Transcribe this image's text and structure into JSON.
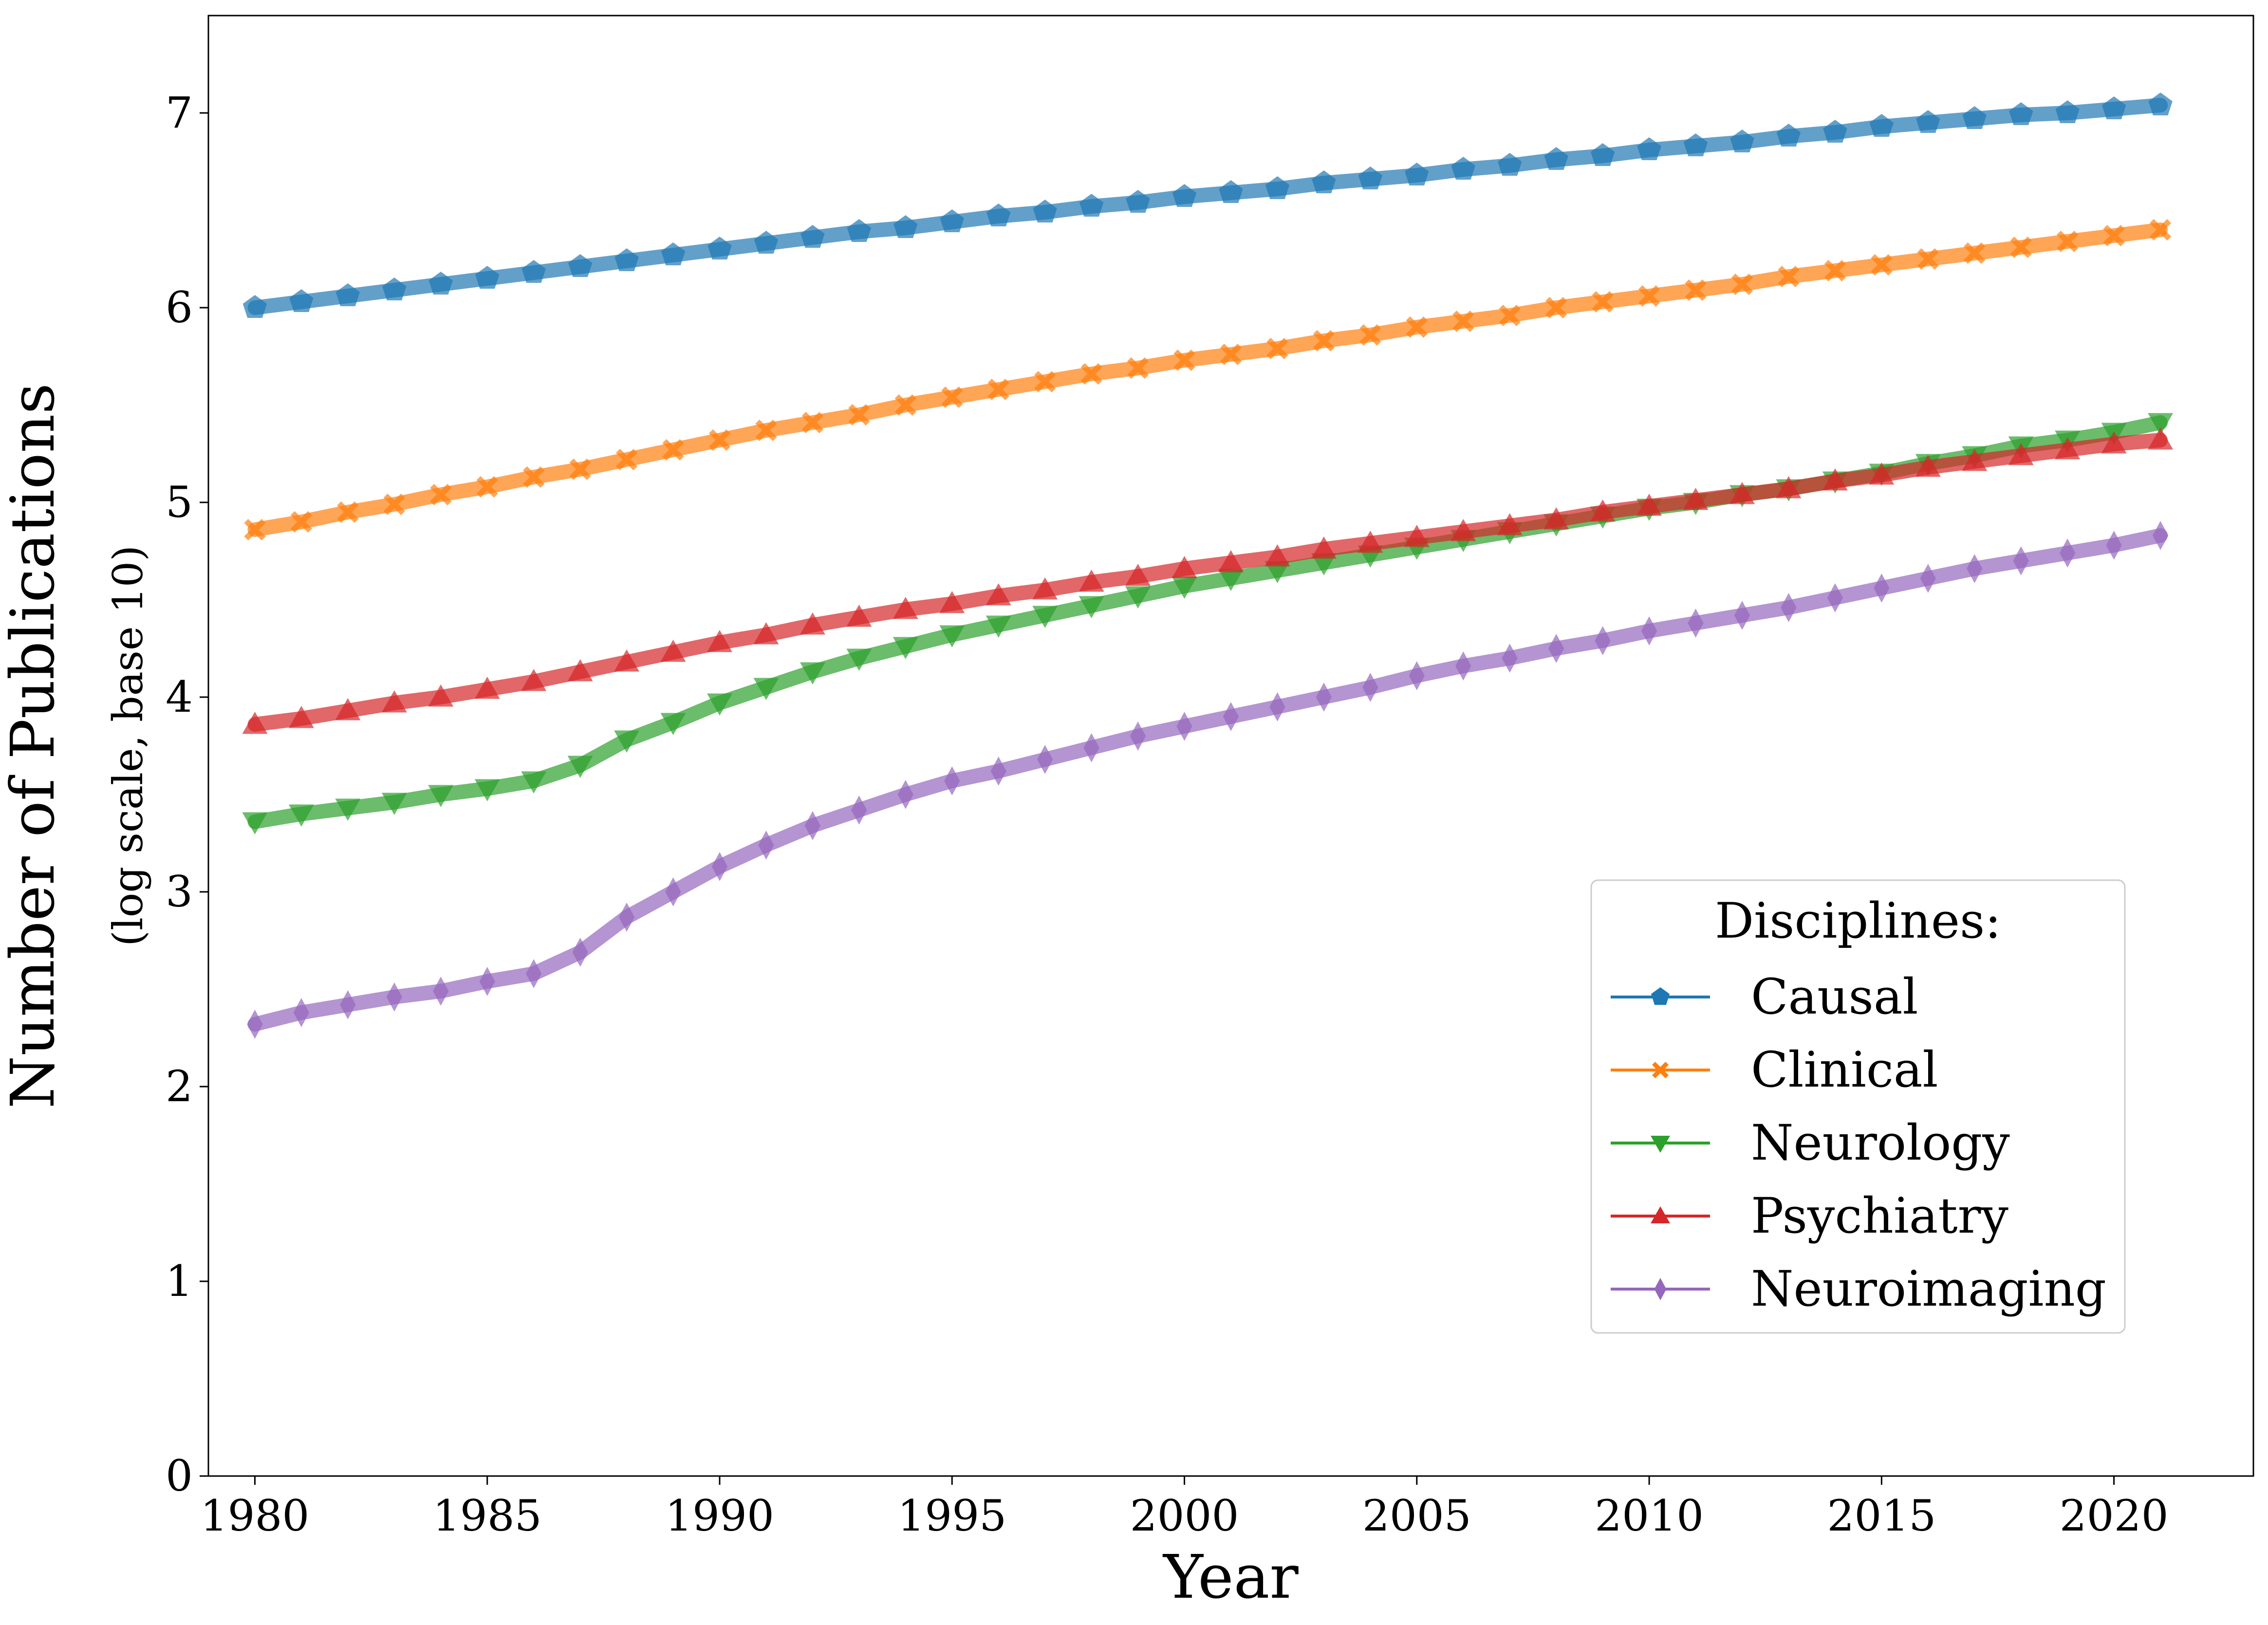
{
  "chart_data": {
    "type": "line",
    "x": [
      1980,
      1981,
      1982,
      1983,
      1984,
      1985,
      1986,
      1987,
      1988,
      1989,
      1990,
      1991,
      1992,
      1993,
      1994,
      1995,
      1996,
      1997,
      1998,
      1999,
      2000,
      2001,
      2002,
      2003,
      2004,
      2005,
      2006,
      2007,
      2008,
      2009,
      2010,
      2011,
      2012,
      2013,
      2014,
      2015,
      2016,
      2017,
      2018,
      2019,
      2020,
      2021
    ],
    "series": [
      {
        "name": "Causal",
        "color": "#1f77b4",
        "marker": "pentagon",
        "values": [
          6.0,
          6.03,
          6.06,
          6.09,
          6.12,
          6.15,
          6.18,
          6.21,
          6.24,
          6.27,
          6.3,
          6.33,
          6.36,
          6.39,
          6.41,
          6.44,
          6.47,
          6.49,
          6.52,
          6.54,
          6.57,
          6.59,
          6.61,
          6.64,
          6.66,
          6.68,
          6.71,
          6.73,
          6.76,
          6.78,
          6.81,
          6.83,
          6.85,
          6.88,
          6.9,
          6.93,
          6.95,
          6.97,
          6.99,
          7.0,
          7.02,
          7.04
        ]
      },
      {
        "name": "Clinical",
        "color": "#ff7f0e",
        "marker": "x",
        "values": [
          4.86,
          4.9,
          4.95,
          4.99,
          5.04,
          5.08,
          5.13,
          5.17,
          5.22,
          5.27,
          5.32,
          5.37,
          5.41,
          5.45,
          5.5,
          5.54,
          5.58,
          5.62,
          5.66,
          5.69,
          5.73,
          5.76,
          5.79,
          5.83,
          5.86,
          5.9,
          5.93,
          5.96,
          6.0,
          6.03,
          6.06,
          6.09,
          6.12,
          6.16,
          6.19,
          6.22,
          6.25,
          6.28,
          6.31,
          6.34,
          6.37,
          6.4
        ]
      },
      {
        "name": "Neurology",
        "color": "#2ca02c",
        "marker": "triangle-down",
        "values": [
          3.36,
          3.4,
          3.43,
          3.46,
          3.5,
          3.53,
          3.57,
          3.65,
          3.78,
          3.87,
          3.97,
          4.05,
          4.13,
          4.2,
          4.26,
          4.32,
          4.37,
          4.42,
          4.47,
          4.52,
          4.57,
          4.61,
          4.65,
          4.69,
          4.73,
          4.77,
          4.81,
          4.85,
          4.89,
          4.93,
          4.97,
          5.0,
          5.04,
          5.07,
          5.11,
          5.15,
          5.2,
          5.24,
          5.29,
          5.32,
          5.36,
          5.41
        ]
      },
      {
        "name": "Psychiatry",
        "color": "#d62728",
        "marker": "triangle-up",
        "values": [
          3.86,
          3.89,
          3.93,
          3.97,
          4.0,
          4.04,
          4.08,
          4.13,
          4.18,
          4.23,
          4.28,
          4.32,
          4.37,
          4.41,
          4.45,
          4.48,
          4.52,
          4.55,
          4.59,
          4.62,
          4.66,
          4.69,
          4.72,
          4.76,
          4.79,
          4.82,
          4.85,
          4.88,
          4.91,
          4.95,
          4.98,
          5.01,
          5.04,
          5.07,
          5.11,
          5.14,
          5.18,
          5.21,
          5.24,
          5.27,
          5.3,
          5.32
        ]
      },
      {
        "name": "Neuroimaging",
        "color": "#9467bd",
        "marker": "diamond",
        "values": [
          2.32,
          2.38,
          2.42,
          2.46,
          2.49,
          2.54,
          2.58,
          2.69,
          2.87,
          3.0,
          3.13,
          3.24,
          3.34,
          3.42,
          3.5,
          3.57,
          3.62,
          3.68,
          3.74,
          3.8,
          3.85,
          3.9,
          3.95,
          4.0,
          4.05,
          4.11,
          4.16,
          4.2,
          4.25,
          4.29,
          4.34,
          4.38,
          4.42,
          4.46,
          4.51,
          4.56,
          4.61,
          4.66,
          4.7,
          4.74,
          4.78,
          4.83
        ]
      }
    ],
    "xlabel": "Year",
    "ylabel": "Number of Publications",
    "ylabel_sub": "(log scale, base 10)",
    "xlim": [
      1979,
      2023
    ],
    "ylim": [
      0,
      7.5
    ],
    "xticks": [
      1980,
      1985,
      1990,
      1995,
      2000,
      2005,
      2010,
      2015,
      2020
    ],
    "yticks": [
      0,
      1,
      2,
      3,
      4,
      5,
      6,
      7
    ],
    "grid": false,
    "legend": {
      "title": "Disciplines:",
      "placement": "center-right"
    }
  }
}
